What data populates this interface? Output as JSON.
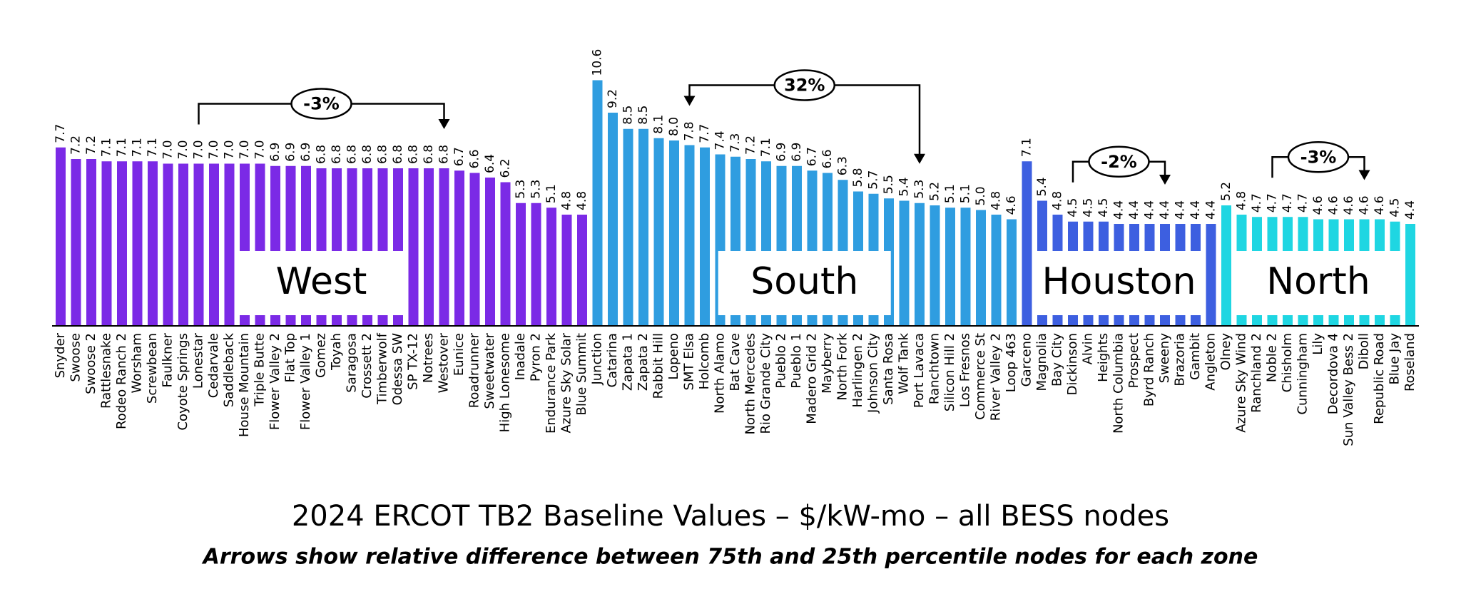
{
  "chart_data": {
    "type": "bar",
    "title": "2024 ERCOT TB2 Baseline Values – $/kW-mo – all BESS nodes",
    "subtitle": "Arrows show relative difference between 75th and 25th percentile nodes for each zone",
    "zones": [
      {
        "name": "West",
        "color": "#7b2ae6",
        "categories": [
          "Snyder",
          "Swoose",
          "Swoose 2",
          "Rattlesnake",
          "Rodeo Ranch 2",
          "Worsham",
          "Screwbean",
          "Faulkner",
          "Coyote Springs",
          "Lonestar",
          "Cedarvale",
          "Saddleback",
          "House Mountain",
          "Triple Butte",
          "Flower Valley 2",
          "Flat Top",
          "Flower Valley 1",
          "Gomez",
          "Toyah",
          "Saragosa",
          "Crossett 2",
          "Timberwolf",
          "Odessa SW",
          "SP TX-12",
          "Notrees",
          "Westover",
          "Eunice",
          "Roadrunner",
          "Sweetwater",
          "High Lonesome",
          "Inadale",
          "Pyron 2",
          "Endurance Park",
          "Azure Sky Solar",
          "Blue Summit"
        ],
        "values": [
          7.7,
          7.2,
          7.2,
          7.1,
          7.1,
          7.1,
          7.1,
          7,
          7,
          7,
          7,
          7,
          7,
          7,
          6.9,
          6.9,
          6.9,
          6.8,
          6.8,
          6.8,
          6.8,
          6.8,
          6.8,
          6.8,
          6.8,
          6.8,
          6.7,
          6.6,
          6.4,
          6.2,
          5.3,
          5.3,
          5.1,
          4.8,
          4.8
        ],
        "value_labels": [
          "7.7",
          "7.2",
          "7.2",
          "7.1",
          "7.1",
          "7.1",
          "7.1",
          "7.0",
          "7.0",
          "7.0",
          "7.0",
          "7.0",
          "7.0",
          "7.0",
          "6.9",
          "6.9",
          "6.9",
          "6.8",
          "6.8",
          "6.8",
          "6.8",
          "6.8",
          "6.8",
          "6.8",
          "6.8",
          "6.8",
          "6.7",
          "6.6",
          "6.4",
          "6.2",
          "5.3",
          "5.3",
          "5.1",
          "4.8",
          "4.8"
        ],
        "arrow": {
          "label": "-3%",
          "from": 9,
          "to": 25,
          "heads": "end"
        }
      },
      {
        "name": "South",
        "color": "#2f9de0",
        "categories": [
          "Junction",
          "Catarina",
          "Zapata 1",
          "Zapata 2",
          "Rabbit Hill",
          "Lopeno",
          "SMT Elsa",
          "Holcomb",
          "North Alamo",
          "Bat Cave",
          "North Mercedes",
          "Rio Grande City",
          "Pueblo 2",
          "Pueblo 1",
          "Madero Grid 2",
          "Mayberry",
          "North Fork",
          "Harlingen 2",
          "Johnson City",
          "Santa Rosa",
          "Wolf Tank",
          "Port Lavaca",
          "Ranchtown",
          "Silicon Hill 2",
          "Los Fresnos",
          "Commerce St",
          "River Valley 2",
          "Loop 463"
        ],
        "values": [
          10.6,
          9.2,
          8.5,
          8.5,
          8.1,
          8,
          7.8,
          7.7,
          7.4,
          7.3,
          7.2,
          7.1,
          6.9,
          6.9,
          6.7,
          6.6,
          6.3,
          5.8,
          5.7,
          5.5,
          5.4,
          5.3,
          5.2,
          5.1,
          5.1,
          5,
          4.8,
          4.6
        ],
        "value_labels": [
          "10.6",
          "9.2",
          "8.5",
          "8.5",
          "8.1",
          "8.0",
          "7.8",
          "7.7",
          "7.4",
          "7.3",
          "7.2",
          "7.1",
          "6.9",
          "6.9",
          "6.7",
          "6.6",
          "6.3",
          "5.8",
          "5.7",
          "5.5",
          "5.4",
          "5.3",
          "5.2",
          "5.1",
          "5.1",
          "5.0",
          "4.8",
          "4.6"
        ],
        "arrow": {
          "label": "32%",
          "from": 6,
          "to": 21,
          "heads": "both"
        }
      },
      {
        "name": "Houston",
        "color": "#3d5fe0",
        "categories": [
          "Garceno",
          "Magnolia",
          "Bay City",
          "Dickinson",
          "Alvin",
          "Heights",
          "North Columbia",
          "Prospect",
          "Byrd Ranch",
          "Sweeny",
          "Brazoria",
          "Gambit",
          "Angleton"
        ],
        "values": [
          7.1,
          5.4,
          4.8,
          4.5,
          4.5,
          4.5,
          4.4,
          4.4,
          4.4,
          4.4,
          4.4,
          4.4,
          4.4
        ],
        "value_labels": [
          "7.1",
          "5.4",
          "4.8",
          "4.5",
          "4.5",
          "4.5",
          "4.4",
          "4.4",
          "4.4",
          "4.4",
          "4.4",
          "4.4",
          "4.4"
        ],
        "arrow": {
          "label": "-2%",
          "from": 3,
          "to": 9,
          "heads": "end"
        }
      },
      {
        "name": "North",
        "color": "#1fd6e2",
        "categories": [
          "Olney",
          "Azure Sky Wind",
          "Ranchland 2",
          "Noble 2",
          "Chisholm",
          "Cunningham",
          "Lily",
          "Decordova 4",
          "Sun Valley Bess 2",
          "Diboll",
          "Republic Road",
          "Blue Jay",
          "Roseland"
        ],
        "values": [
          5.2,
          4.8,
          4.7,
          4.7,
          4.7,
          4.7,
          4.6,
          4.6,
          4.6,
          4.6,
          4.6,
          4.5,
          4.4
        ],
        "value_labels": [
          "5.2",
          "4.8",
          "4.7",
          "4.7",
          "4.7",
          "4.7",
          "4.6",
          "4.6",
          "4.6",
          "4.6",
          "4.6",
          "4.5",
          "4.4"
        ],
        "arrow": {
          "label": "-3%",
          "from": 3,
          "to": 9,
          "heads": "end"
        }
      }
    ]
  }
}
